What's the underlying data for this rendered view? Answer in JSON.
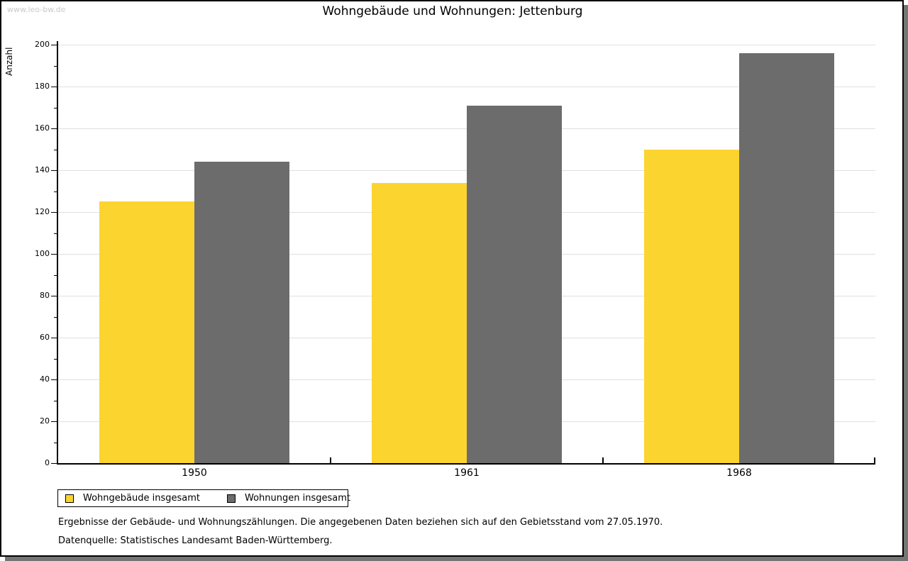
{
  "watermark": "www.leo-bw.de",
  "window": {
    "background": "#ffffff",
    "border_color": "#000000",
    "shadow_color": "#757575"
  },
  "chart_data": {
    "type": "bar",
    "title": "Wohngebäude und Wohnungen: Jettenburg",
    "ylabel": "Anzahl",
    "xlabel": "",
    "categories": [
      "1950",
      "1961",
      "1968"
    ],
    "series": [
      {
        "name": "Wohngebäude insgesamt",
        "color": "#FCD430",
        "values": [
          125,
          134,
          150
        ]
      },
      {
        "name": "Wohnungen insgesamt",
        "color": "#6C6C6C",
        "values": [
          144,
          171,
          196
        ]
      }
    ],
    "ylim": [
      0,
      200
    ],
    "y_major_step": 20,
    "y_minor_step": 10,
    "grid": "horizontal-major",
    "gridline_color": "#e0e0e0",
    "legend_position": "bottom-left"
  },
  "footnotes": [
    "Ergebnisse der Gebäude- und Wohnungszählungen. Die angegebenen Daten beziehen sich auf den Gebietsstand vom 27.05.1970.",
    "Datenquelle: Statistisches Landesamt Baden-Württemberg."
  ]
}
